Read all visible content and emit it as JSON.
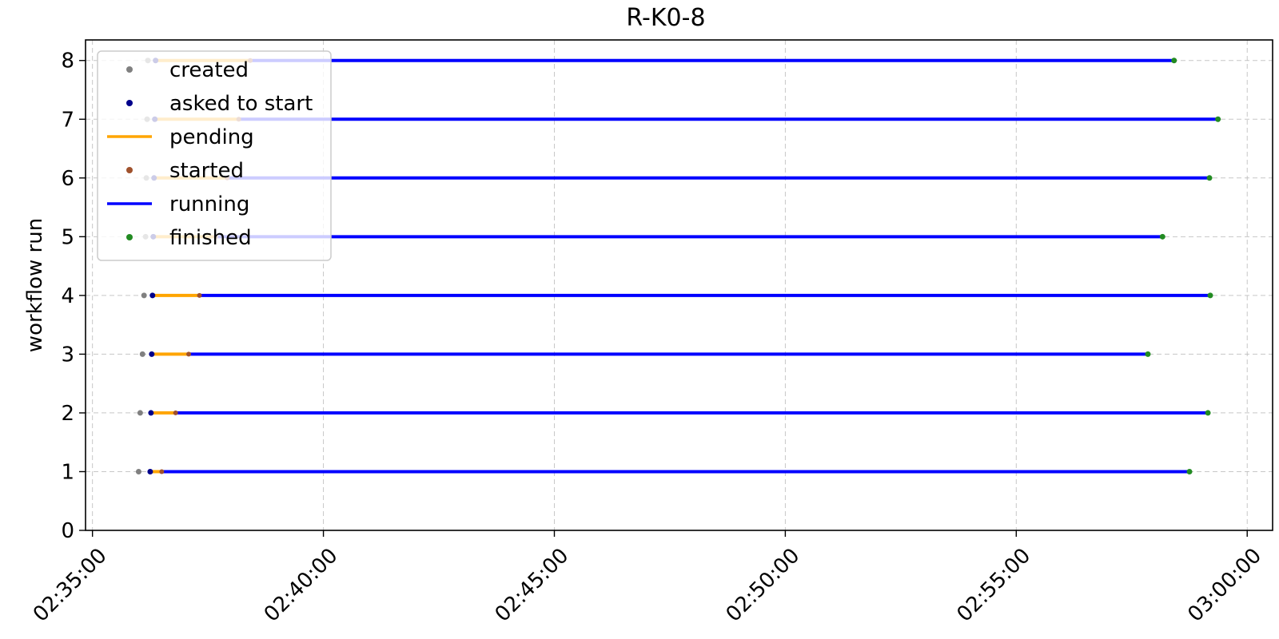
{
  "chart_data": {
    "type": "timeline",
    "title": "R-K0-8",
    "xlabel": "",
    "ylabel": "workflow run",
    "x_ticks": [
      "02:35:00",
      "02:40:00",
      "02:45:00",
      "02:50:00",
      "02:55:00",
      "03:00:00"
    ],
    "xlim": [
      "02:34:51",
      "03:00:33"
    ],
    "y_ticks": [
      "0",
      "1",
      "2",
      "3",
      "4",
      "5",
      "6",
      "7",
      "8"
    ],
    "ylim": [
      0,
      8.35
    ],
    "grid": true,
    "legend_placement": "top-left",
    "legend": [
      {
        "label": "created",
        "kind": "dot",
        "color": "#808080"
      },
      {
        "label": "asked to start",
        "kind": "dot",
        "color": "#00008b"
      },
      {
        "label": "pending",
        "kind": "line",
        "color": "#ffa500"
      },
      {
        "label": "started",
        "kind": "dot",
        "color": "#a0522d"
      },
      {
        "label": "running",
        "kind": "line",
        "color": "#0000ff"
      },
      {
        "label": "finished",
        "kind": "dot",
        "color": "#228b22"
      }
    ],
    "runs": [
      {
        "run": 1,
        "created": "02:36:00",
        "asked_to_start": "02:36:15",
        "started": "02:36:30",
        "finished": "02:58:45"
      },
      {
        "run": 2,
        "created": "02:36:02",
        "asked_to_start": "02:36:16",
        "started": "02:36:48",
        "finished": "02:59:09"
      },
      {
        "run": 3,
        "created": "02:36:05",
        "asked_to_start": "02:36:17",
        "started": "02:37:05",
        "finished": "02:57:51"
      },
      {
        "run": 4,
        "created": "02:36:07",
        "asked_to_start": "02:36:18",
        "started": "02:37:19",
        "finished": "02:59:12"
      },
      {
        "run": 5,
        "created": "02:36:09",
        "asked_to_start": "02:36:19",
        "started": "02:37:40",
        "finished": "02:58:10"
      },
      {
        "run": 6,
        "created": "02:36:10",
        "asked_to_start": "02:36:20",
        "started": "02:37:55",
        "finished": "02:59:11"
      },
      {
        "run": 7,
        "created": "02:36:11",
        "asked_to_start": "02:36:21",
        "started": "02:38:10",
        "finished": "02:59:22"
      },
      {
        "run": 8,
        "created": "02:36:12",
        "asked_to_start": "02:36:22",
        "started": "02:38:25",
        "finished": "02:58:25"
      }
    ]
  }
}
